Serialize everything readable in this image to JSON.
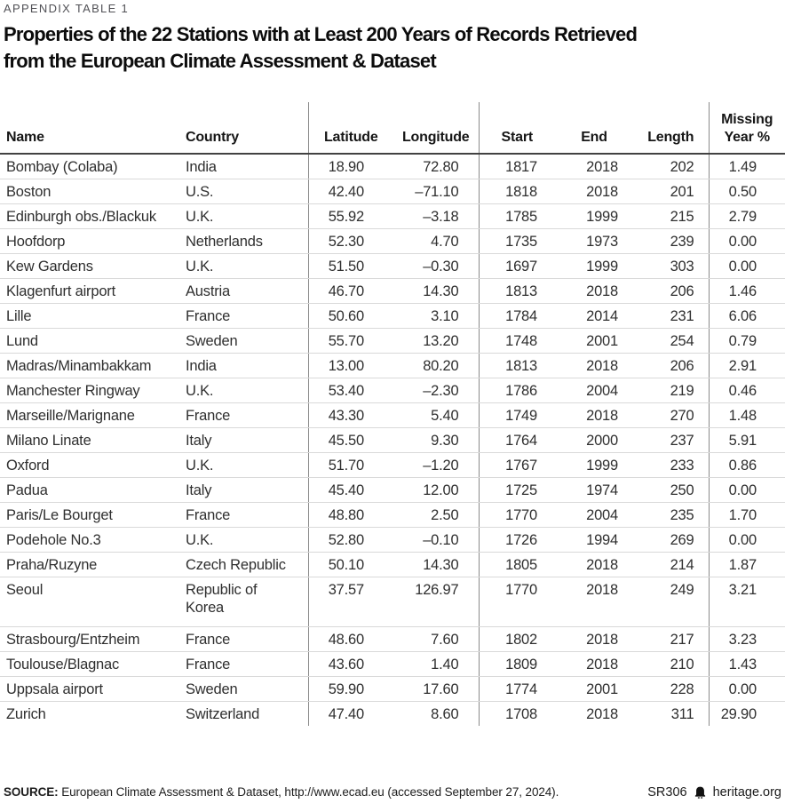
{
  "header": {
    "kicker": "APPENDIX TABLE 1",
    "title_lines": [
      "Properties of the 22 Stations with at Least 200 Years of Records Retrieved",
      "from the European Climate Assessment & Dataset"
    ]
  },
  "table": {
    "columns": [
      {
        "key": "name",
        "label": "Name"
      },
      {
        "key": "country",
        "label": "Country"
      },
      {
        "key": "latitude",
        "label": "Latitude"
      },
      {
        "key": "longitude",
        "label": "Longitude"
      },
      {
        "key": "start",
        "label": "Start"
      },
      {
        "key": "end",
        "label": "End"
      },
      {
        "key": "length",
        "label": "Length"
      },
      {
        "key": "missing",
        "label": "Missing Year %"
      }
    ],
    "rows": [
      [
        "Bombay (Colaba)",
        "India",
        "18.90",
        "72.80",
        "1817",
        "2018",
        "202",
        "1.49"
      ],
      [
        "Boston",
        "U.S.",
        "42.40",
        "–71.10",
        "1818",
        "2018",
        "201",
        "0.50"
      ],
      [
        "Edinburgh obs./Blackuk",
        "U.K.",
        "55.92",
        "–3.18",
        "1785",
        "1999",
        "215",
        "2.79"
      ],
      [
        "Hoofdorp",
        "Netherlands",
        "52.30",
        "4.70",
        "1735",
        "1973",
        "239",
        "0.00"
      ],
      [
        "Kew Gardens",
        "U.K.",
        "51.50",
        "–0.30",
        "1697",
        "1999",
        "303",
        "0.00"
      ],
      [
        "Klagenfurt airport",
        "Austria",
        "46.70",
        "14.30",
        "1813",
        "2018",
        "206",
        "1.46"
      ],
      [
        "Lille",
        "France",
        "50.60",
        "3.10",
        "1784",
        "2014",
        "231",
        "6.06"
      ],
      [
        "Lund",
        "Sweden",
        "55.70",
        "13.20",
        "1748",
        "2001",
        "254",
        "0.79"
      ],
      [
        "Madras/Minambakkam",
        "India",
        "13.00",
        "80.20",
        "1813",
        "2018",
        "206",
        "2.91"
      ],
      [
        "Manchester Ringway",
        "U.K.",
        "53.40",
        "–2.30",
        "1786",
        "2004",
        "219",
        "0.46"
      ],
      [
        "Marseille/Marignane",
        "France",
        "43.30",
        "5.40",
        "1749",
        "2018",
        "270",
        "1.48"
      ],
      [
        "Milano Linate",
        "Italy",
        "45.50",
        "9.30",
        "1764",
        "2000",
        "237",
        "5.91"
      ],
      [
        "Oxford",
        "U.K.",
        "51.70",
        "–1.20",
        "1767",
        "1999",
        "233",
        "0.86"
      ],
      [
        "Padua",
        "Italy",
        "45.40",
        "12.00",
        "1725",
        "1974",
        "250",
        "0.00"
      ],
      [
        "Paris/Le Bourget",
        "France",
        "48.80",
        "2.50",
        "1770",
        "2004",
        "235",
        "1.70"
      ],
      [
        "Podehole No.3",
        "U.K.",
        "52.80",
        "–0.10",
        "1726",
        "1994",
        "269",
        "0.00"
      ],
      [
        "Praha/Ruzyne",
        "Czech Republic",
        "50.10",
        "14.30",
        "1805",
        "2018",
        "214",
        "1.87"
      ],
      [
        "Seoul",
        "Republic of\nKorea",
        "37.57",
        "126.97",
        "1770",
        "2018",
        "249",
        "3.21"
      ],
      [
        "Strasbourg/Entzheim",
        "France",
        "48.60",
        "7.60",
        "1802",
        "2018",
        "217",
        "3.23"
      ],
      [
        "Toulouse/Blagnac",
        "France",
        "43.60",
        "1.40",
        "1809",
        "2018",
        "210",
        "1.43"
      ],
      [
        "Uppsala airport",
        "Sweden",
        "59.90",
        "17.60",
        "1774",
        "2001",
        "228",
        "0.00"
      ],
      [
        "Zurich",
        "Switzerland",
        "47.40",
        "8.60",
        "1708",
        "2018",
        "311",
        "29.90"
      ]
    ]
  },
  "footer": {
    "source_label": "SOURCE:",
    "source_text": " European Climate Assessment & Dataset, http://www.ecad.eu (accessed September 27, 2024).",
    "report_id": "SR306",
    "site": "heritage.org",
    "bell_icon": "liberty-bell"
  },
  "colors": {
    "text": "#2f2f2f",
    "kicker": "#515156",
    "header_rule": "#424242",
    "row_rule": "#d9d9d9",
    "column_rule": "#8a8a8a"
  }
}
